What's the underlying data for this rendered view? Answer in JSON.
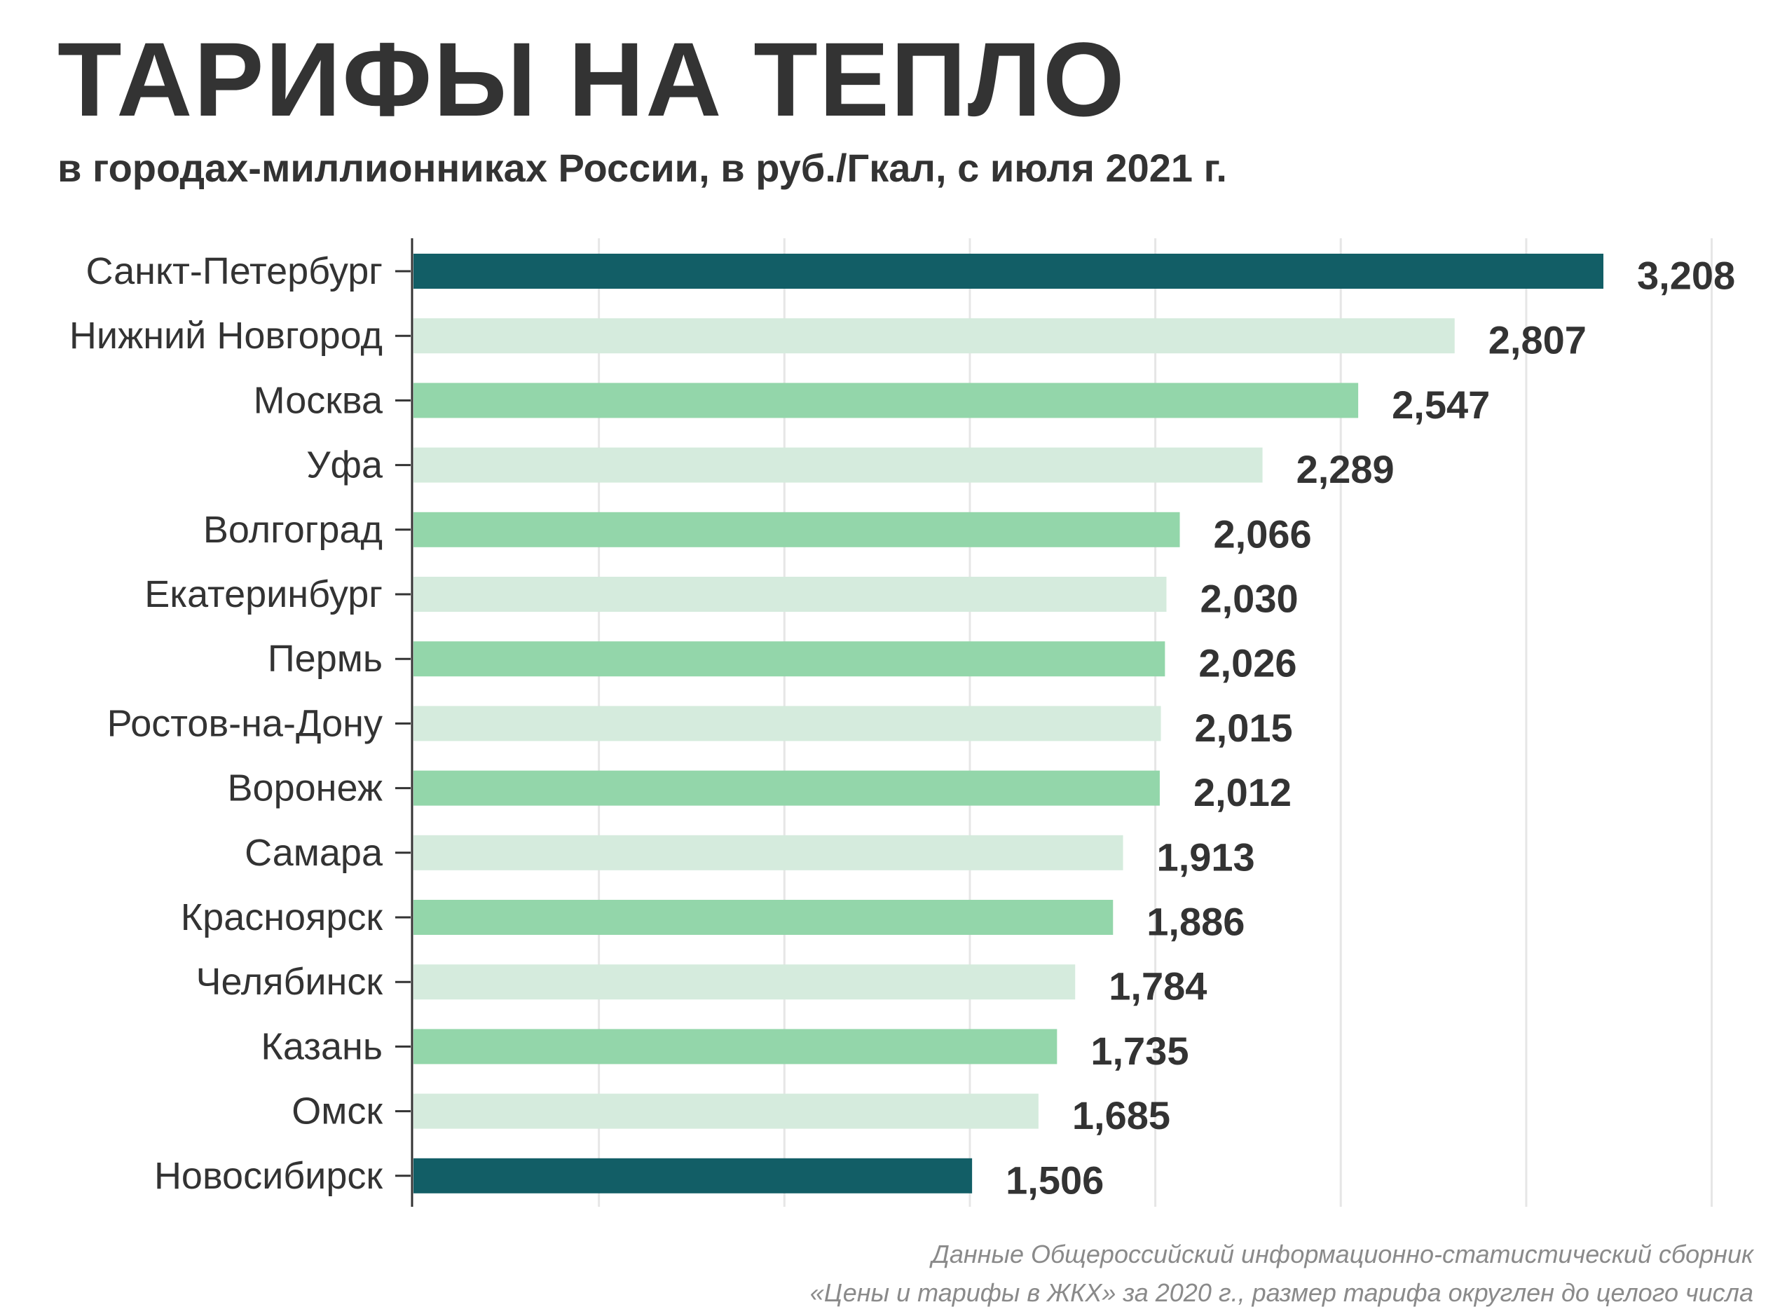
{
  "header": {
    "title": "ТАРИФЫ НА ТЕПЛО",
    "subtitle": "в городах-миллионниках России, в руб./Гкал, с июля 2021 г."
  },
  "footnote": {
    "line1": "Данные Общероссийский информационно-статистический сборник",
    "line2": "«Цены и тарифы в ЖКХ» за 2020 г.,  размер тарифа округлен до целого числа"
  },
  "colors": {
    "dark": "#125e66",
    "mid": "#93d6aa",
    "light": "#d5ebdd",
    "text": "#333333",
    "grid": "#e6e6e6"
  },
  "chart_data": {
    "type": "bar",
    "orientation": "horizontal",
    "xlim": [
      0,
      3500
    ],
    "grid": "vertical",
    "categories": [
      "Санкт-Петербург",
      "Нижний Новгород",
      "Москва",
      "Уфа",
      "Волгоград",
      "Екатеринбург",
      "Пермь",
      "Ростов-на-Дону",
      "Воронеж",
      "Самара",
      "Красноярск",
      "Челябинск",
      "Казань",
      "Омск",
      "Новосибирск"
    ],
    "values": [
      3208,
      2807,
      2547,
      2289,
      2066,
      2030,
      2026,
      2015,
      2012,
      1913,
      1886,
      1784,
      1735,
      1685,
      1506
    ],
    "value_labels": [
      "3,208",
      "2,807",
      "2,547",
      "2,289",
      "2,066",
      "2,030",
      "2,026",
      "2,015",
      "2,012",
      "1,913",
      "1,886",
      "1,784",
      "1,735",
      "1,685",
      "1,506"
    ],
    "bar_colors": [
      "dark",
      "light",
      "mid",
      "light",
      "mid",
      "light",
      "mid",
      "light",
      "mid",
      "light",
      "mid",
      "light",
      "mid",
      "light",
      "dark"
    ]
  }
}
